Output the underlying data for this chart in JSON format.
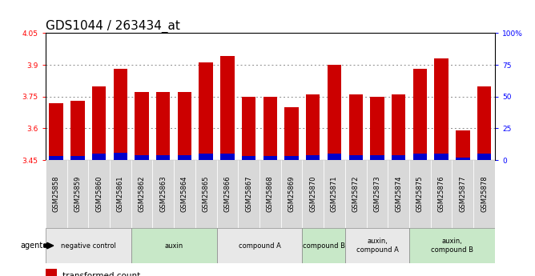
{
  "title": "GDS1044 / 263434_at",
  "samples": [
    "GSM25858",
    "GSM25859",
    "GSM25860",
    "GSM25861",
    "GSM25862",
    "GSM25863",
    "GSM25864",
    "GSM25865",
    "GSM25866",
    "GSM25867",
    "GSM25868",
    "GSM25869",
    "GSM25870",
    "GSM25871",
    "GSM25872",
    "GSM25873",
    "GSM25874",
    "GSM25875",
    "GSM25876",
    "GSM25877",
    "GSM25878"
  ],
  "transformed_count": [
    3.72,
    3.73,
    3.8,
    3.88,
    3.77,
    3.77,
    3.77,
    3.91,
    3.94,
    3.75,
    3.75,
    3.7,
    3.76,
    3.9,
    3.76,
    3.75,
    3.76,
    3.88,
    3.93,
    3.59,
    3.8
  ],
  "percentile_rank": [
    3,
    3,
    5,
    6,
    4,
    4,
    4,
    5,
    5,
    3,
    3,
    3,
    4,
    5,
    4,
    4,
    4,
    5,
    5,
    2,
    5
  ],
  "ylim_left": [
    3.45,
    4.05
  ],
  "ylim_right": [
    0,
    100
  ],
  "yticks_left": [
    3.45,
    3.6,
    3.75,
    3.9,
    4.05
  ],
  "yticks_right": [
    0,
    25,
    50,
    75,
    100
  ],
  "ytick_labels_right": [
    "0",
    "25",
    "50",
    "75",
    "100%"
  ],
  "groups": [
    {
      "label": "negative control",
      "start": 0,
      "end": 3,
      "color": "#e8e8e8"
    },
    {
      "label": "auxin",
      "start": 4,
      "end": 7,
      "color": "#c8e8c8"
    },
    {
      "label": "compound A",
      "start": 8,
      "end": 11,
      "color": "#e8e8e8"
    },
    {
      "label": "compound B",
      "start": 12,
      "end": 13,
      "color": "#c8e8c8"
    },
    {
      "label": "auxin,\ncompound A",
      "start": 14,
      "end": 16,
      "color": "#e8e8e8"
    },
    {
      "label": "auxin,\ncompound B",
      "start": 17,
      "end": 20,
      "color": "#c8e8c8"
    }
  ],
  "bar_color_red": "#cc0000",
  "bar_color_blue": "#0000cc",
  "bar_width": 0.65,
  "grid_color": "#888888",
  "title_fontsize": 11,
  "tick_fontsize": 6.5,
  "label_fontsize": 6,
  "legend_fontsize": 7.5,
  "agent_label": "agent",
  "baseline": 3.45
}
